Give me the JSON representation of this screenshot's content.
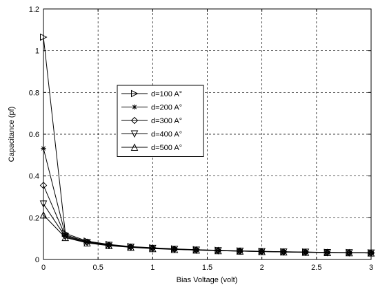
{
  "chart_data": {
    "type": "line",
    "title": "",
    "xlabel": "Bias Voltage (volt)",
    "ylabel": "Capacitance (pf)",
    "xlim": [
      0,
      3
    ],
    "ylim": [
      0,
      1.2
    ],
    "xticks": [
      0,
      0.5,
      1,
      1.5,
      2,
      2.5,
      3
    ],
    "xtick_labels": [
      "0",
      "0.5",
      "1",
      "1.5",
      "2",
      "2.5",
      "3"
    ],
    "yticks": [
      0,
      0.2,
      0.4,
      0.6,
      0.8,
      1,
      1.2
    ],
    "ytick_labels": [
      "0",
      "0.2",
      "0.4",
      "0.6",
      "0.8",
      "1",
      "1.2"
    ],
    "grid": true,
    "grid_style": "dashed",
    "legend_position": "center-left",
    "x": [
      0,
      0.2,
      0.4,
      0.6,
      0.8,
      1.0,
      1.2,
      1.4,
      1.6,
      1.8,
      2.0,
      2.2,
      2.4,
      2.6,
      2.8,
      3.0
    ],
    "series": [
      {
        "name": "d=100 A°",
        "marker": "triangle-right",
        "values": [
          1.065,
          0.125,
          0.088,
          0.072,
          0.062,
          0.056,
          0.051,
          0.047,
          0.044,
          0.041,
          0.039,
          0.037,
          0.036,
          0.034,
          0.033,
          0.032
        ]
      },
      {
        "name": "d=200 A°",
        "marker": "star",
        "values": [
          0.532,
          0.118,
          0.085,
          0.07,
          0.061,
          0.055,
          0.05,
          0.046,
          0.043,
          0.041,
          0.039,
          0.037,
          0.035,
          0.034,
          0.033,
          0.032
        ]
      },
      {
        "name": "d=300 A°",
        "marker": "diamond",
        "values": [
          0.355,
          0.113,
          0.083,
          0.069,
          0.06,
          0.054,
          0.049,
          0.046,
          0.043,
          0.04,
          0.038,
          0.036,
          0.035,
          0.034,
          0.032,
          0.031
        ]
      },
      {
        "name": "d=400 A°",
        "marker": "triangle-down",
        "values": [
          0.266,
          0.109,
          0.081,
          0.068,
          0.059,
          0.053,
          0.049,
          0.045,
          0.042,
          0.04,
          0.038,
          0.036,
          0.035,
          0.033,
          0.032,
          0.031
        ]
      },
      {
        "name": "d=500 A°",
        "marker": "triangle-up",
        "values": [
          0.213,
          0.105,
          0.079,
          0.066,
          0.058,
          0.052,
          0.048,
          0.045,
          0.042,
          0.04,
          0.038,
          0.036,
          0.034,
          0.033,
          0.032,
          0.031
        ]
      }
    ]
  }
}
